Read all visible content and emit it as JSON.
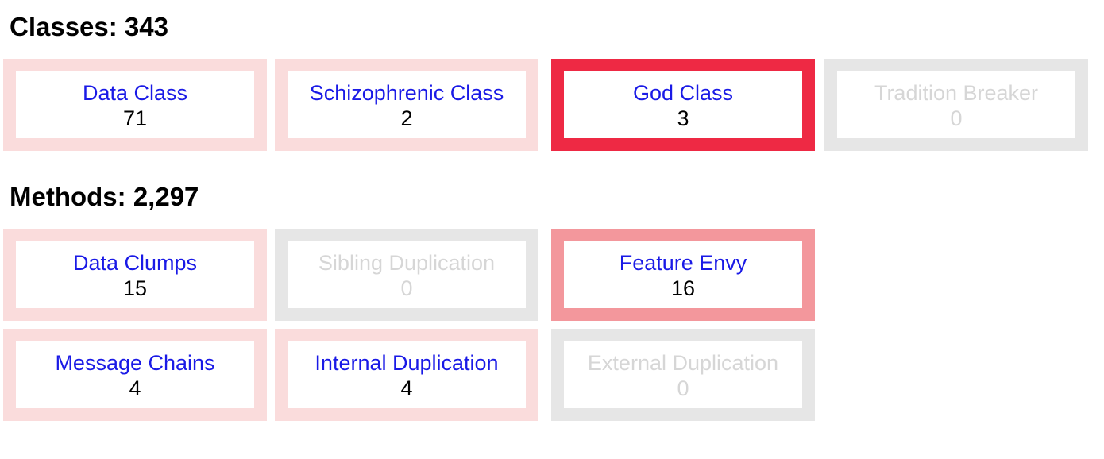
{
  "classes": {
    "heading": "Classes: 343",
    "tiles": [
      {
        "label": "Data Class",
        "count": "71"
      },
      {
        "label": "Schizophrenic Class",
        "count": "2"
      },
      {
        "label": "God Class",
        "count": "3"
      },
      {
        "label": "Tradition Breaker",
        "count": "0"
      }
    ]
  },
  "methods": {
    "heading": "Methods: 2,297",
    "tiles": [
      {
        "label": "Data Clumps",
        "count": "15"
      },
      {
        "label": "Sibling Duplication",
        "count": "0"
      },
      {
        "label": "Feature Envy",
        "count": "16"
      },
      {
        "label": "Message Chains",
        "count": "4"
      },
      {
        "label": "Internal Duplication",
        "count": "4"
      },
      {
        "label": "External Duplication",
        "count": "0"
      }
    ]
  },
  "colors": {
    "link": "#1a1ae6",
    "border_light": "#fadcdc",
    "border_mid": "#f3979c",
    "border_strong": "#ee2944",
    "border_empty": "#e6e6e6",
    "text_empty": "#d6d6d6"
  }
}
